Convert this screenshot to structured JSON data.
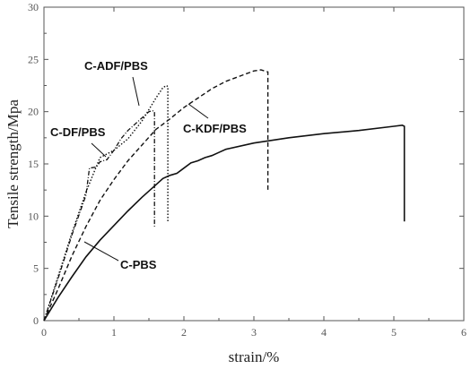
{
  "chart_data": {
    "type": "line",
    "xlabel": "strain/%",
    "ylabel": "Tensile strength/Mpa",
    "xlim": [
      0,
      6
    ],
    "ylim": [
      0,
      30
    ],
    "xticks": [
      0,
      1,
      2,
      3,
      4,
      5,
      6
    ],
    "yticks": [
      0,
      5,
      10,
      15,
      20,
      25,
      30
    ],
    "grid": false,
    "legend": "none",
    "series": [
      {
        "name": "C-PBS",
        "style": "solid",
        "x": [
          0,
          0.2,
          0.4,
          0.6,
          0.8,
          1.0,
          1.2,
          1.4,
          1.6,
          1.7,
          1.8,
          1.9,
          2.0,
          2.1,
          2.2,
          2.3,
          2.4,
          2.5,
          2.6,
          3.0,
          3.5,
          4.0,
          4.5,
          5.0,
          5.12,
          5.15,
          5.15
        ],
        "y": [
          0,
          2.2,
          4.2,
          6.1,
          7.7,
          9.1,
          10.5,
          11.8,
          13.0,
          13.6,
          13.9,
          14.1,
          14.6,
          15.1,
          15.3,
          15.6,
          15.8,
          16.1,
          16.4,
          17.0,
          17.5,
          17.9,
          18.2,
          18.6,
          18.7,
          18.6,
          9.5
        ]
      },
      {
        "name": "C-DF/PBS",
        "style": "dash-dot",
        "x": [
          0,
          0.2,
          0.4,
          0.6,
          0.65,
          0.75,
          0.8,
          0.9,
          1.0,
          1.1,
          1.2,
          1.3,
          1.4,
          1.5,
          1.55,
          1.58,
          1.58
        ],
        "y": [
          0,
          4.0,
          8.2,
          12.0,
          14.6,
          14.7,
          15.2,
          15.4,
          16.3,
          17.4,
          18.2,
          18.8,
          19.4,
          20.0,
          20.1,
          20.0,
          9.0
        ]
      },
      {
        "name": "C-ADF/PBS",
        "style": "dotted",
        "x": [
          0,
          0.2,
          0.4,
          0.6,
          0.8,
          1.0,
          1.2,
          1.4,
          1.5,
          1.6,
          1.7,
          1.75,
          1.77,
          1.77
        ],
        "y": [
          0,
          4.2,
          8.4,
          12.3,
          15.6,
          16.3,
          17.4,
          19.1,
          20.2,
          21.3,
          22.3,
          22.5,
          22.4,
          9.5
        ]
      },
      {
        "name": "C-KDF/PBS",
        "style": "dashed",
        "x": [
          0,
          0.2,
          0.4,
          0.6,
          0.8,
          1.0,
          1.2,
          1.4,
          1.6,
          1.8,
          2.0,
          2.2,
          2.4,
          2.6,
          2.8,
          3.0,
          3.1,
          3.15,
          3.2,
          3.2
        ],
        "y": [
          0,
          3.0,
          6.2,
          9.0,
          11.5,
          13.5,
          15.3,
          16.8,
          18.3,
          19.3,
          20.4,
          21.3,
          22.2,
          22.9,
          23.4,
          23.9,
          24.0,
          23.9,
          23.8,
          12.5
        ]
      }
    ]
  }
}
